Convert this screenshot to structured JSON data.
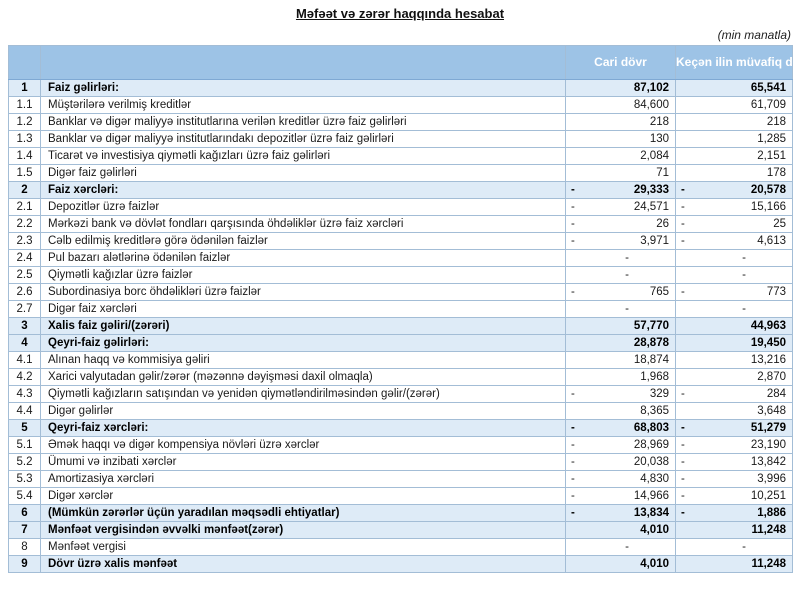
{
  "title": "Məfəət və zərər haqqında hesabat",
  "units_note": "(min manatla)",
  "colors": {
    "header_bg": "#9dc3e6",
    "header_text": "#ffffff",
    "emphasis_row_bg": "#deebf7",
    "border": "#a3bdd6"
  },
  "table": {
    "columns": [
      "Cari dövr",
      "Keçən ilin müvafiq dövrü"
    ],
    "rows": [
      {
        "num": "1",
        "label": "Faiz gəlirləri:",
        "cur": "87,102",
        "cur_neg": false,
        "prev": "65,541",
        "prev_neg": false,
        "emphasis": true
      },
      {
        "num": "1.1",
        "label": "Müştərilərə verilmiş kreditlər",
        "cur": "84,600",
        "cur_neg": false,
        "prev": "61,709",
        "prev_neg": false,
        "emphasis": false
      },
      {
        "num": "1.2",
        "label": "Banklar və digər maliyyə institutlarına verilən kreditlər üzrə faiz gəlirləri",
        "cur": "218",
        "cur_neg": false,
        "prev": "218",
        "prev_neg": false,
        "emphasis": false
      },
      {
        "num": "1.3",
        "label": "Banklar və digər maliyyə institutlarındakı depozitlər üzrə faiz gəlirləri",
        "cur": "130",
        "cur_neg": false,
        "prev": "1,285",
        "prev_neg": false,
        "emphasis": false
      },
      {
        "num": "1.4",
        "label": "Ticarət və investisiya qiymətli kağızları üzrə faiz gəlirləri",
        "cur": "2,084",
        "cur_neg": false,
        "prev": "2,151",
        "prev_neg": false,
        "emphasis": false
      },
      {
        "num": "1.5",
        "label": "Digər faiz gəlirləri",
        "cur": "71",
        "cur_neg": false,
        "prev": "178",
        "prev_neg": false,
        "emphasis": false
      },
      {
        "num": "2",
        "label": "Faiz xərcləri:",
        "cur": "29,333",
        "cur_neg": true,
        "prev": "20,578",
        "prev_neg": true,
        "emphasis": true
      },
      {
        "num": "2.1",
        "label": "Depozitlər üzrə faizlər",
        "cur": "24,571",
        "cur_neg": true,
        "prev": "15,166",
        "prev_neg": true,
        "emphasis": false
      },
      {
        "num": "2.2",
        "label": "Mərkəzi bank və dövlət fondları qarşısında öhdəliklər üzrə faiz xərcləri",
        "cur": "26",
        "cur_neg": true,
        "prev": "25",
        "prev_neg": true,
        "emphasis": false
      },
      {
        "num": "2.3",
        "label": "Cəlb edilmiş kreditlərə görə ödənilən faizlər",
        "cur": "3,971",
        "cur_neg": true,
        "prev": "4,613",
        "prev_neg": true,
        "emphasis": false
      },
      {
        "num": "2.4",
        "label": "Pul bazarı alətlərinə ödənilən faizlər",
        "cur": "-",
        "cur_neg": false,
        "prev": "-",
        "prev_neg": false,
        "emphasis": false
      },
      {
        "num": "2.5",
        "label": "Qiymətli kağızlar üzrə faizlər",
        "cur": "-",
        "cur_neg": false,
        "prev": "-",
        "prev_neg": false,
        "emphasis": false
      },
      {
        "num": "2.6",
        "label": "Subordinasiya borc öhdəlikləri üzrə faizlər",
        "cur": "765",
        "cur_neg": true,
        "prev": "773",
        "prev_neg": true,
        "emphasis": false
      },
      {
        "num": "2.7",
        "label": "Digər faiz xərcləri",
        "cur": "-",
        "cur_neg": false,
        "prev": "-",
        "prev_neg": false,
        "emphasis": false
      },
      {
        "num": "3",
        "label": "Xalis faiz gəliri/(zərəri)",
        "cur": "57,770",
        "cur_neg": false,
        "prev": "44,963",
        "prev_neg": false,
        "emphasis": true
      },
      {
        "num": "4",
        "label": "Qeyri-faiz gəlirləri:",
        "cur": "28,878",
        "cur_neg": false,
        "prev": "19,450",
        "prev_neg": false,
        "emphasis": true
      },
      {
        "num": "4.1",
        "label": "Alınan haqq və kommisiya gəliri",
        "cur": "18,874",
        "cur_neg": false,
        "prev": "13,216",
        "prev_neg": false,
        "emphasis": false
      },
      {
        "num": "4.2",
        "label": "Xarici valyutadan gəlir/zərər (məzənnə dəyişməsi daxil olmaqla)",
        "cur": "1,968",
        "cur_neg": false,
        "prev": "2,870",
        "prev_neg": false,
        "emphasis": false
      },
      {
        "num": "4.3",
        "label": "Qiymətli kağızların satışından və yenidən qiymətləndirilməsindən gəlir/(zərər)",
        "cur": "329",
        "cur_neg": true,
        "prev": "284",
        "prev_neg": true,
        "emphasis": false
      },
      {
        "num": "4.4",
        "label": "Digər gəlirlər",
        "cur": "8,365",
        "cur_neg": false,
        "prev": "3,648",
        "prev_neg": false,
        "emphasis": false
      },
      {
        "num": "5",
        "label": "Qeyri-faiz xərcləri:",
        "cur": "68,803",
        "cur_neg": true,
        "prev": "51,279",
        "prev_neg": true,
        "emphasis": true
      },
      {
        "num": "5.1",
        "label": "Əmək haqqı və digər kompensiya növləri üzrə xərclər",
        "cur": "28,969",
        "cur_neg": true,
        "prev": "23,190",
        "prev_neg": true,
        "emphasis": false
      },
      {
        "num": "5.2",
        "label": "Ümumi və inzibati xərclər",
        "cur": "20,038",
        "cur_neg": true,
        "prev": "13,842",
        "prev_neg": true,
        "emphasis": false
      },
      {
        "num": "5.3",
        "label": "Amortizasiya xərcləri",
        "cur": "4,830",
        "cur_neg": true,
        "prev": "3,996",
        "prev_neg": true,
        "emphasis": false
      },
      {
        "num": "5.4",
        "label": "Digər xərclər",
        "cur": "14,966",
        "cur_neg": true,
        "prev": "10,251",
        "prev_neg": true,
        "emphasis": false
      },
      {
        "num": "6",
        "label": "(Mümkün zərərlər üçün yaradılan məqsədli ehtiyatlar)",
        "cur": "13,834",
        "cur_neg": true,
        "prev": "1,886",
        "prev_neg": true,
        "emphasis": true
      },
      {
        "num": "7",
        "label": "Mənfəət vergisindən əvvəlki mənfəət(zərər)",
        "cur": "4,010",
        "cur_neg": false,
        "prev": "11,248",
        "prev_neg": false,
        "emphasis": true
      },
      {
        "num": "8",
        "label": "Mənfəət vergisi",
        "cur": "-",
        "cur_neg": false,
        "prev": "-",
        "prev_neg": false,
        "emphasis": false
      },
      {
        "num": "9",
        "label": "Dövr üzrə xalis mənfəət",
        "cur": "4,010",
        "cur_neg": false,
        "prev": "11,248",
        "prev_neg": false,
        "emphasis": true
      }
    ]
  }
}
